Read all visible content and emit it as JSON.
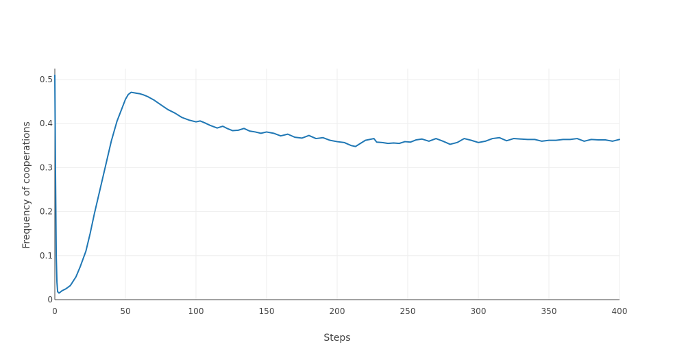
{
  "chart_data": {
    "type": "line",
    "title": "",
    "xlabel": "Steps",
    "ylabel": "Frequency of cooperations",
    "xlim": [
      0,
      400
    ],
    "ylim": [
      0,
      0.525
    ],
    "grid": true,
    "line_color": "#1f77b4",
    "x_ticks": [
      0,
      50,
      100,
      150,
      200,
      250,
      300,
      350,
      400
    ],
    "y_ticks": [
      0,
      0.1,
      0.2,
      0.3,
      0.4,
      0.5
    ],
    "x_tick_labels": [
      "0",
      "50",
      "100",
      "150",
      "200",
      "250",
      "300",
      "350",
      "400"
    ],
    "y_tick_labels": [
      "0",
      "0.1",
      "0.2",
      "0.3",
      "0.4",
      "0.5"
    ],
    "series": [
      {
        "x": [
          0,
          0.5,
          1,
          1.5,
          2,
          3,
          5,
          8,
          11,
          15,
          18,
          22,
          25,
          28,
          32,
          36,
          40,
          44,
          47,
          50,
          52,
          54,
          56,
          58,
          60,
          63,
          66,
          70,
          75,
          80,
          85,
          90,
          95,
          100,
          103,
          106,
          110,
          115,
          119,
          122,
          126,
          130,
          134,
          138,
          142,
          146,
          150,
          155,
          160,
          165,
          170,
          175,
          180,
          185,
          190,
          195,
          200,
          205,
          210,
          213,
          216,
          220,
          223,
          226,
          228,
          232,
          236,
          240,
          244,
          248,
          252,
          256,
          260,
          265,
          270,
          275,
          280,
          285,
          290,
          295,
          300,
          305,
          310,
          315,
          320,
          325,
          330,
          335,
          340,
          345,
          350,
          355,
          360,
          365,
          370,
          375,
          380,
          385,
          390,
          395,
          400
        ],
        "y": [
          0.51,
          0.28,
          0.1,
          0.04,
          0.018,
          0.015,
          0.02,
          0.025,
          0.032,
          0.052,
          0.075,
          0.11,
          0.15,
          0.195,
          0.25,
          0.305,
          0.36,
          0.405,
          0.43,
          0.455,
          0.466,
          0.471,
          0.47,
          0.469,
          0.468,
          0.465,
          0.461,
          0.454,
          0.443,
          0.432,
          0.424,
          0.414,
          0.408,
          0.404,
          0.406,
          0.402,
          0.396,
          0.39,
          0.394,
          0.389,
          0.384,
          0.385,
          0.389,
          0.383,
          0.381,
          0.378,
          0.381,
          0.378,
          0.372,
          0.376,
          0.369,
          0.367,
          0.373,
          0.366,
          0.368,
          0.362,
          0.359,
          0.357,
          0.35,
          0.348,
          0.354,
          0.362,
          0.364,
          0.366,
          0.358,
          0.357,
          0.355,
          0.356,
          0.355,
          0.359,
          0.358,
          0.363,
          0.365,
          0.36,
          0.366,
          0.36,
          0.353,
          0.357,
          0.366,
          0.362,
          0.357,
          0.36,
          0.366,
          0.368,
          0.361,
          0.366,
          0.365,
          0.364,
          0.364,
          0.36,
          0.362,
          0.362,
          0.364,
          0.364,
          0.366,
          0.36,
          0.364,
          0.363,
          0.363,
          0.36,
          0.364
        ]
      }
    ]
  }
}
